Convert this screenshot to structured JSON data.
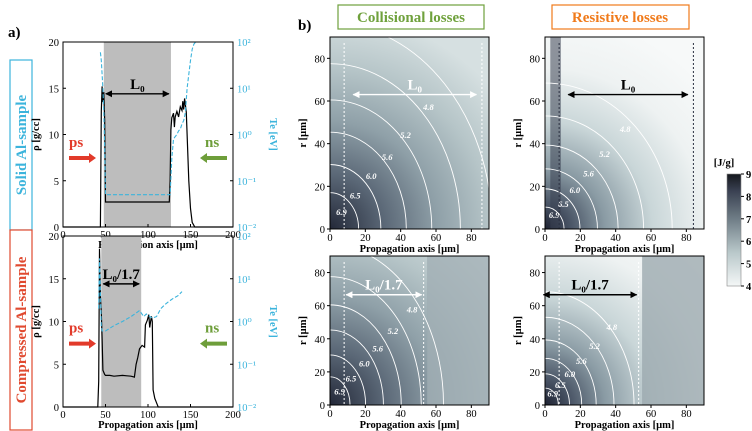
{
  "panel_labels": {
    "a": "a)",
    "b": "b)"
  },
  "titles": {
    "collisional": "Collisional losses",
    "resistive": "Resistive losses"
  },
  "row_labels": {
    "solid": "Solid Al-sample",
    "compressed": "Compressed Al-sample"
  },
  "colorbar": {
    "label": "[J/g]",
    "ticks": [
      "9",
      "8",
      "7",
      "6",
      "5",
      "4"
    ],
    "min": 4,
    "max": 9
  },
  "colors": {
    "collisional_title": "#6fa13c",
    "resistive_title": "#f07a1a",
    "ps_arrow": "#e23a2a",
    "ns_arrow": "#6e9e3a",
    "te_line": "#3cb4dc",
    "shade": "#bdbdbd",
    "row_label": "#e04a30"
  },
  "chart_data": [
    {
      "type": "line",
      "id": "a-top",
      "xlabel": "Propagation axis [µm]",
      "ylabel": "ρ [g/cc]",
      "y2label": "Te [eV]",
      "xlim": [
        0,
        200
      ],
      "ylim": [
        0,
        20
      ],
      "y2lim": [
        0.01,
        100
      ],
      "y2scale": "log",
      "xticks": [
        "0",
        "50",
        "100",
        "150",
        "200"
      ],
      "yticks": [
        "0",
        "5",
        "10",
        "15",
        "20"
      ],
      "y2ticks": [
        "10⁻²",
        "10⁻¹",
        "10⁰",
        "10¹",
        "10²"
      ],
      "shaded_x": [
        48,
        127
      ],
      "span_label": "L₀",
      "left_marker": "ps",
      "right_marker": "ns",
      "series": [
        {
          "name": "",
          "axis": "y",
          "x": [
            0,
            44,
            45,
            46,
            47,
            48,
            49,
            50,
            52,
            56,
            60,
            70,
            80,
            90,
            100,
            110,
            120,
            125,
            126,
            127,
            128,
            130,
            131,
            132,
            134,
            136,
            138,
            140,
            141,
            142,
            143,
            145,
            148,
            150,
            152,
            155,
            160,
            200
          ],
          "y": [
            0,
            0,
            12.5,
            15.2,
            13.5,
            14.6,
            11.5,
            2.7,
            2.7,
            2.7,
            2.7,
            2.7,
            2.7,
            2.7,
            2.7,
            2.7,
            2.7,
            2.7,
            5.0,
            10.5,
            11.8,
            12.3,
            10.8,
            11.9,
            12.5,
            11.9,
            13.0,
            12.6,
            13.6,
            12.7,
            13.9,
            12.4,
            5.0,
            2.0,
            0.5,
            0,
            0,
            0
          ]
        },
        {
          "name": "",
          "axis": "y2",
          "x": [
            44,
            45,
            46,
            47,
            48,
            49,
            50,
            52,
            60,
            80,
            100,
            120,
            126,
            128,
            130,
            132,
            134,
            136,
            138,
            140,
            142,
            144,
            146,
            148,
            150,
            152,
            154,
            156
          ],
          "y": [
            60,
            40,
            20,
            10,
            3,
            0.5,
            0.05,
            0.05,
            0.05,
            0.05,
            0.05,
            0.05,
            0.05,
            0.3,
            0.8,
            0.9,
            1.0,
            1.2,
            1.3,
            1.7,
            2.0,
            3.0,
            10,
            20,
            40,
            70,
            90,
            100
          ]
        }
      ]
    },
    {
      "type": "line",
      "id": "a-bottom",
      "xlabel": "Propagation axis [µm]",
      "ylabel": "ρ [g/cc]",
      "y2label": "Te [eV]",
      "xlim": [
        0,
        200
      ],
      "ylim": [
        0,
        20
      ],
      "y2lim": [
        0.01,
        100
      ],
      "y2scale": "log",
      "xticks": [
        "0",
        "50",
        "100",
        "150",
        "200"
      ],
      "yticks": [
        "0",
        "5",
        "10",
        "15",
        "20"
      ],
      "y2ticks": [
        "10⁻²",
        "10⁻¹",
        "10⁰",
        "10¹",
        "10²"
      ],
      "shaded_x": [
        45,
        92
      ],
      "span_label": "L₀/1.7",
      "left_marker": "ps",
      "right_marker": "ns",
      "series": [
        {
          "name": "",
          "axis": "y",
          "x": [
            0,
            41,
            42,
            43,
            44,
            45,
            46,
            47,
            49,
            50,
            55,
            60,
            70,
            80,
            84,
            86,
            88,
            90,
            93,
            96,
            97,
            99,
            101,
            102,
            104,
            105,
            106,
            108,
            110,
            112,
            200
          ],
          "y": [
            0,
            0,
            3,
            18.5,
            13,
            11,
            8,
            4.3,
            3.8,
            3.7,
            3.7,
            3.6,
            3.7,
            3.6,
            3.5,
            5.0,
            5.8,
            6.8,
            7.2,
            7.0,
            9.6,
            10.1,
            10.8,
            9.3,
            10.6,
            10.0,
            2.0,
            1.0,
            0.5,
            0,
            0
          ]
        },
        {
          "name": "",
          "axis": "y2",
          "x": [
            42,
            43,
            44,
            45,
            46,
            50,
            60,
            70,
            80,
            90,
            95,
            98,
            100,
            105,
            110,
            115,
            120,
            125,
            130,
            135,
            140
          ],
          "y": [
            2,
            30,
            5,
            0.8,
            0.6,
            0.6,
            0.8,
            1.0,
            1.3,
            1.8,
            1.3,
            1.5,
            1.4,
            1.2,
            1.3,
            2.0,
            2.5,
            3.0,
            3.5,
            4.0,
            5.0
          ]
        }
      ]
    },
    {
      "type": "heatmap",
      "id": "b-collisional-solid",
      "xlabel": "Propagation axis [µm]",
      "ylabel": "r [µm]",
      "xlim": [
        0,
        90
      ],
      "ylim": [
        0,
        90
      ],
      "xticks": [
        "0",
        "20",
        "40",
        "60",
        "80"
      ],
      "yticks": [
        "0",
        "20",
        "40",
        "60",
        "80"
      ],
      "contour_labels": [
        "4.8",
        "5.2",
        "5.6",
        "6.0",
        "6.5",
        "6.9"
      ],
      "span_label": "L₀"
    },
    {
      "type": "heatmap",
      "id": "b-resistive-solid",
      "xlabel": "Propagation axis [µm]",
      "ylabel": "r [µm]",
      "xlim": [
        0,
        90
      ],
      "ylim": [
        0,
        90
      ],
      "xticks": [
        "0",
        "20",
        "40",
        "60",
        "80"
      ],
      "yticks": [
        "0",
        "20",
        "40",
        "60",
        "80"
      ],
      "contour_labels": [
        "4.8",
        "5.2",
        "5.6",
        "6.0",
        "6.5",
        "6.9"
      ],
      "span_label": "L₀"
    },
    {
      "type": "heatmap",
      "id": "b-collisional-compressed",
      "xlabel": "Propagation axis [µm]",
      "ylabel": "r [µm]",
      "xlim": [
        0,
        90
      ],
      "ylim": [
        0,
        90
      ],
      "xticks": [
        "0",
        "20",
        "40",
        "60",
        "80"
      ],
      "yticks": [
        "0",
        "20",
        "40",
        "60",
        "80"
      ],
      "contour_labels": [
        "4.8",
        "5.2",
        "5.6",
        "6.0",
        "6.5",
        "6.9"
      ],
      "span_label": "L₀/1.7"
    },
    {
      "type": "heatmap",
      "id": "b-resistive-compressed",
      "xlabel": "Propagation axis [µm]",
      "ylabel": "r [µm]",
      "xlim": [
        0,
        90
      ],
      "ylim": [
        0,
        90
      ],
      "xticks": [
        "0",
        "20",
        "40",
        "60",
        "80"
      ],
      "yticks": [
        "0",
        "20",
        "40",
        "60",
        "80"
      ],
      "contour_labels": [
        "4.8",
        "5.2",
        "5.6",
        "6.0",
        "6.5",
        "6.9"
      ],
      "span_label": "L₀/1.7"
    }
  ]
}
